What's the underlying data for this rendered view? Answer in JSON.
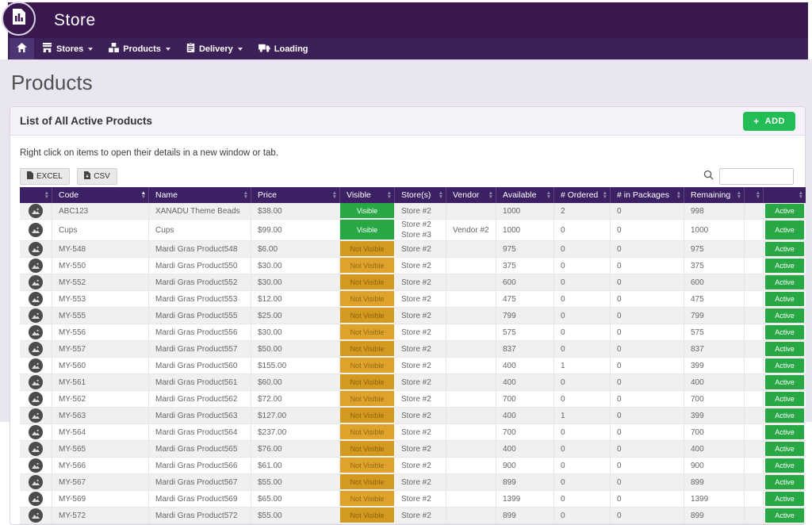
{
  "app": {
    "title": "Store"
  },
  "nav": {
    "items": [
      {
        "label": "",
        "icon": "home-icon"
      },
      {
        "label": "Stores",
        "icon": "storefront-icon",
        "caret": true
      },
      {
        "label": "Products",
        "icon": "products-icon",
        "caret": true
      },
      {
        "label": "Delivery",
        "icon": "delivery-icon",
        "caret": true
      },
      {
        "label": "Loading",
        "icon": "loading-truck-icon",
        "caret": false
      }
    ]
  },
  "page": {
    "title": "Products"
  },
  "panel": {
    "title": "List of All Active Products",
    "add_button": "ADD",
    "hint": "Right click on items to open their details in a new window or tab.",
    "export_buttons": [
      "EXCEL",
      "CSV"
    ]
  },
  "search": {
    "value": ""
  },
  "table": {
    "columns": [
      "",
      "Code",
      "Name",
      "Price",
      "Visible",
      "Store(s)",
      "Vendor",
      "Available",
      "# Ordered",
      "# in Packages",
      "Remaining",
      "",
      ""
    ],
    "sorted_by": "Code",
    "sort_dir": "asc",
    "rows": [
      {
        "code": "ABC123",
        "name": "XANADU Theme Beads",
        "price": "$38.00",
        "visible": "Visible",
        "stores": [
          "Store #2"
        ],
        "vendor": "",
        "available": "1000",
        "ordered": "2",
        "in_packages": "0",
        "remaining": "998",
        "status": "Active"
      },
      {
        "code": "Cups",
        "name": "Cups",
        "price": "$99.00",
        "visible": "Visible",
        "stores": [
          "Store #2",
          "Store #3"
        ],
        "vendor": "Vendor #2",
        "available": "1000",
        "ordered": "0",
        "in_packages": "0",
        "remaining": "1000",
        "status": "Active"
      },
      {
        "code": "MY-548",
        "name": "Mardi Gras Product548",
        "price": "$6.00",
        "visible": "Not Visible",
        "stores": [
          "Store #2"
        ],
        "vendor": "",
        "available": "975",
        "ordered": "0",
        "in_packages": "0",
        "remaining": "975",
        "status": "Active"
      },
      {
        "code": "MY-550",
        "name": "Mardi Gras Product550",
        "price": "$30.00",
        "visible": "Not Visible",
        "stores": [
          "Store #2"
        ],
        "vendor": "",
        "available": "375",
        "ordered": "0",
        "in_packages": "0",
        "remaining": "375",
        "status": "Active"
      },
      {
        "code": "MY-552",
        "name": "Mardi Gras Product552",
        "price": "$30.00",
        "visible": "Not Visible",
        "stores": [
          "Store #2"
        ],
        "vendor": "",
        "available": "600",
        "ordered": "0",
        "in_packages": "0",
        "remaining": "600",
        "status": "Active"
      },
      {
        "code": "MY-553",
        "name": "Mardi Gras Product553",
        "price": "$12.00",
        "visible": "Not Visible",
        "stores": [
          "Store #2"
        ],
        "vendor": "",
        "available": "475",
        "ordered": "0",
        "in_packages": "0",
        "remaining": "475",
        "status": "Active"
      },
      {
        "code": "MY-555",
        "name": "Mardi Gras Product555",
        "price": "$25.00",
        "visible": "Not Visible",
        "stores": [
          "Store #2"
        ],
        "vendor": "",
        "available": "799",
        "ordered": "0",
        "in_packages": "0",
        "remaining": "799",
        "status": "Active"
      },
      {
        "code": "MY-556",
        "name": "Mardi Gras Product556",
        "price": "$30.00",
        "visible": "Not Visible",
        "stores": [
          "Store #2"
        ],
        "vendor": "",
        "available": "575",
        "ordered": "0",
        "in_packages": "0",
        "remaining": "575",
        "status": "Active"
      },
      {
        "code": "MY-557",
        "name": "Mardi Gras Product557",
        "price": "$50.00",
        "visible": "Not Visible",
        "stores": [
          "Store #2"
        ],
        "vendor": "",
        "available": "837",
        "ordered": "0",
        "in_packages": "0",
        "remaining": "837",
        "status": "Active"
      },
      {
        "code": "MY-560",
        "name": "Mardi Gras Product560",
        "price": "$155.00",
        "visible": "Not Visible",
        "stores": [
          "Store #2"
        ],
        "vendor": "",
        "available": "400",
        "ordered": "1",
        "in_packages": "0",
        "remaining": "399",
        "status": "Active"
      },
      {
        "code": "MY-561",
        "name": "Mardi Gras Product561",
        "price": "$60.00",
        "visible": "Not Visible",
        "stores": [
          "Store #2"
        ],
        "vendor": "",
        "available": "400",
        "ordered": "0",
        "in_packages": "0",
        "remaining": "400",
        "status": "Active"
      },
      {
        "code": "MY-562",
        "name": "Mardi Gras Product562",
        "price": "$72.00",
        "visible": "Not Visible",
        "stores": [
          "Store #2"
        ],
        "vendor": "",
        "available": "700",
        "ordered": "0",
        "in_packages": "0",
        "remaining": "700",
        "status": "Active"
      },
      {
        "code": "MY-563",
        "name": "Mardi Gras Product563",
        "price": "$127.00",
        "visible": "Not Visible",
        "stores": [
          "Store #2"
        ],
        "vendor": "",
        "available": "400",
        "ordered": "1",
        "in_packages": "0",
        "remaining": "399",
        "status": "Active"
      },
      {
        "code": "MY-564",
        "name": "Mardi Gras Product564",
        "price": "$237.00",
        "visible": "Not Visible",
        "stores": [
          "Store #2"
        ],
        "vendor": "",
        "available": "700",
        "ordered": "0",
        "in_packages": "0",
        "remaining": "700",
        "status": "Active"
      },
      {
        "code": "MY-565",
        "name": "Mardi Gras Product565",
        "price": "$76.00",
        "visible": "Not Visible",
        "stores": [
          "Store #2"
        ],
        "vendor": "",
        "available": "400",
        "ordered": "0",
        "in_packages": "0",
        "remaining": "400",
        "status": "Active"
      },
      {
        "code": "MY-566",
        "name": "Mardi Gras Product566",
        "price": "$61.00",
        "visible": "Not Visible",
        "stores": [
          "Store #2"
        ],
        "vendor": "",
        "available": "900",
        "ordered": "0",
        "in_packages": "0",
        "remaining": "900",
        "status": "Active"
      },
      {
        "code": "MY-567",
        "name": "Mardi Gras Product567",
        "price": "$55.00",
        "visible": "Not Visible",
        "stores": [
          "Store #2"
        ],
        "vendor": "",
        "available": "899",
        "ordered": "0",
        "in_packages": "0",
        "remaining": "899",
        "status": "Active"
      },
      {
        "code": "MY-569",
        "name": "Mardi Gras Product569",
        "price": "$65.00",
        "visible": "Not Visible",
        "stores": [
          "Store #2"
        ],
        "vendor": "",
        "available": "1399",
        "ordered": "0",
        "in_packages": "0",
        "remaining": "1399",
        "status": "Active"
      },
      {
        "code": "MY-572",
        "name": "Mardi Gras Product572",
        "price": "$55.00",
        "visible": "Not Visible",
        "stores": [
          "Store #2"
        ],
        "vendor": "",
        "available": "899",
        "ordered": "0",
        "in_packages": "0",
        "remaining": "899",
        "status": "Active"
      }
    ]
  },
  "theme": {
    "header-bg": "#38184f",
    "nav-bg": "#3c2159",
    "nav-active": "#4d3472",
    "page-bg": "#eae6f1",
    "thead-bg": "#3b2163",
    "green": "#28a745",
    "add-green": "#22bd55",
    "orange": "#dfa32b",
    "orange-dark": "#d4991f"
  }
}
